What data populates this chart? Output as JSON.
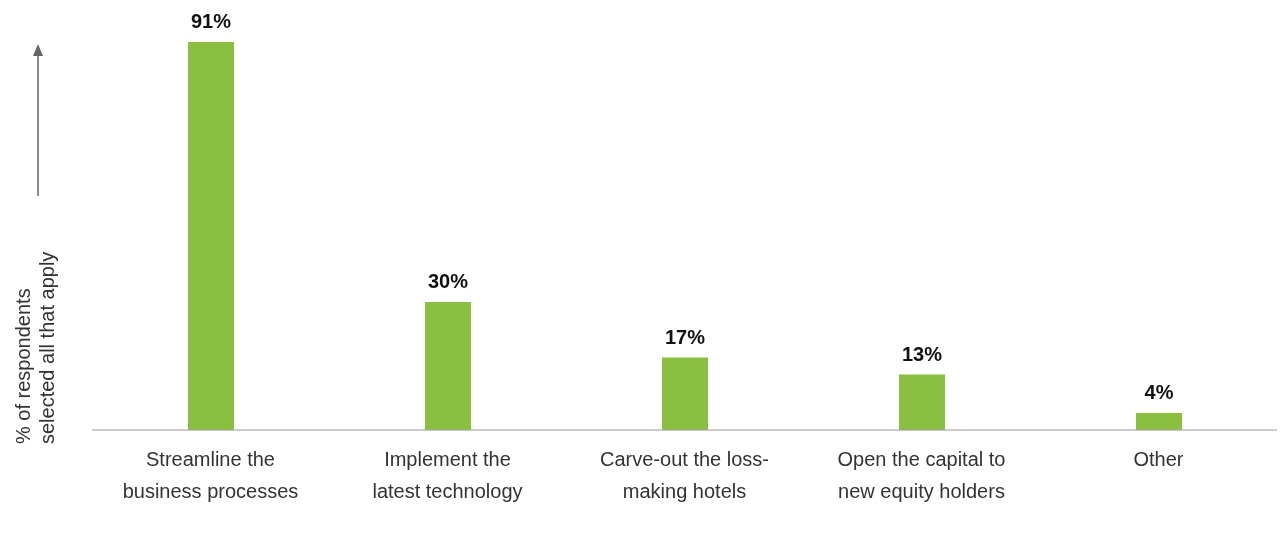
{
  "chart_data": {
    "type": "bar",
    "ylabel": "% of respondents\nselected all that apply",
    "categories": [
      "Streamline the business processes",
      "Implement the latest technology",
      "Carve-out the loss- making hotels",
      "Open the capital to new equity holders",
      "Other"
    ],
    "values": [
      91,
      30,
      17,
      13,
      4
    ],
    "value_labels": [
      "91%",
      "30%",
      "17%",
      "13%",
      "4%"
    ],
    "color": "#8bbf3f"
  }
}
